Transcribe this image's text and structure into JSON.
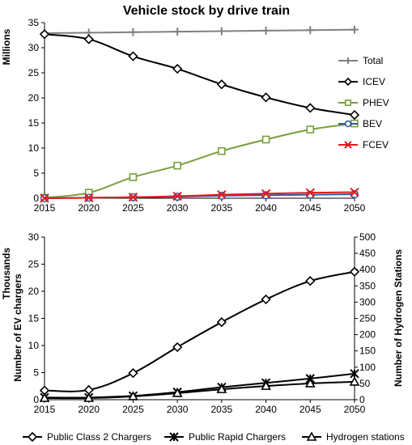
{
  "chart_data": [
    {
      "type": "line",
      "title": "Vehicle stock by drive train",
      "ylabel": "Millions",
      "x": [
        2015,
        2020,
        2025,
        2030,
        2035,
        2040,
        2045,
        2050
      ],
      "ylim": [
        0,
        35
      ],
      "yticks": [
        0,
        5,
        10,
        15,
        20,
        25,
        30,
        35
      ],
      "grid": false,
      "legend_position": "right",
      "series": [
        {
          "name": "Total",
          "color": "#808080",
          "marker": "plus",
          "values": [
            32.9,
            33.0,
            33.1,
            33.2,
            33.3,
            33.4,
            33.5,
            33.6
          ]
        },
        {
          "name": "ICEV",
          "color": "#000000",
          "marker": "diamond",
          "values": [
            32.7,
            31.7,
            28.3,
            25.8,
            22.7,
            20.1,
            18.0,
            16.6
          ]
        },
        {
          "name": "PHEV",
          "color": "#77a03c",
          "marker": "square",
          "values": [
            0.1,
            1.1,
            4.2,
            6.5,
            9.4,
            11.7,
            13.7,
            14.9
          ]
        },
        {
          "name": "BEV",
          "color": "#2e5aa0",
          "marker": "circle",
          "values": [
            0.0,
            0.1,
            0.2,
            0.3,
            0.5,
            0.6,
            0.7,
            0.8
          ]
        },
        {
          "name": "FCEV",
          "color": "#e41a1c",
          "marker": "x",
          "values": [
            0.0,
            0.1,
            0.2,
            0.4,
            0.7,
            0.9,
            1.1,
            1.2
          ]
        }
      ]
    },
    {
      "type": "line",
      "title": "",
      "ylabel": "Number of EV chargers",
      "ylabel_unit": "Thousands",
      "y2label": "Number of Hydrogen Stations",
      "x": [
        2015,
        2020,
        2025,
        2030,
        2035,
        2040,
        2045,
        2050
      ],
      "ylim": [
        0,
        30
      ],
      "yticks": [
        0,
        5,
        10,
        15,
        20,
        25,
        30
      ],
      "y2lim": [
        0,
        500
      ],
      "y2ticks": [
        0,
        50,
        100,
        150,
        200,
        250,
        300,
        350,
        400,
        450,
        500
      ],
      "grid": false,
      "legend_position": "bottom",
      "series": [
        {
          "name": "Public Class 2 Chargers",
          "axis": "left",
          "color": "#000000",
          "marker": "diamond",
          "values": [
            1.7,
            1.8,
            4.9,
            9.7,
            14.3,
            18.5,
            21.9,
            23.6
          ]
        },
        {
          "name": "Public Rapid Chargers",
          "axis": "left",
          "color": "#000000",
          "marker": "asterisk",
          "values": [
            0.4,
            0.4,
            0.7,
            1.4,
            2.3,
            3.1,
            3.9,
            4.8
          ]
        },
        {
          "name": "Hydrogen stations",
          "axis": "right",
          "color": "#000000",
          "marker": "triangle",
          "values": [
            5,
            5,
            10,
            20,
            32,
            42,
            50,
            55
          ]
        }
      ]
    }
  ]
}
